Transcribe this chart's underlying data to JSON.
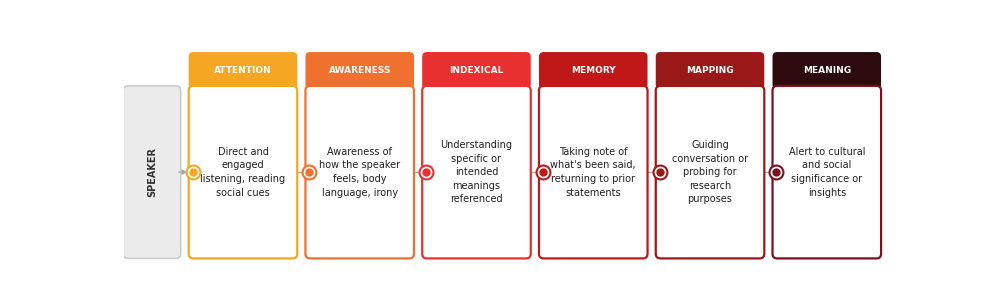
{
  "categories": [
    "ATTENTION",
    "AWARENESS",
    "INDEXICAL",
    "MEMORY",
    "MAPPING",
    "MEANING"
  ],
  "header_colors": [
    "#F5A623",
    "#F07030",
    "#E83030",
    "#C01818",
    "#9B1818",
    "#2C0A0E"
  ],
  "border_colors": [
    "#F5A623",
    "#F07030",
    "#E83030",
    "#C01818",
    "#9B1818",
    "#7A1020"
  ],
  "dot_fill_colors": [
    "#F5A623",
    "#F07030",
    "#E83030",
    "#C01818",
    "#9B1818",
    "#7A1020"
  ],
  "descriptions": [
    "Direct and\nengaged\nlistening, reading\nsocial cues",
    "Awareness of\nhow the speaker\nfeels, body\nlanguage, irony",
    "Understanding\nspecific or\nintended\nmeanings\nreferenced",
    "Taking note of\nwhat's been said,\nreturning to prior\nstatements",
    "Guiding\nconversation or\nprobing for\nresearch\npurposes",
    "Alert to cultural\nand social\nsignificance or\ninsights"
  ],
  "speaker_label": "SPEAKER",
  "bg_color": "#FFFFFF",
  "header_text_color": "#FFFFFF",
  "desc_text_color": "#222222",
  "speaker_bg": "#EBEBEB",
  "speaker_border": "#CCCCCC",
  "speaker_text_color": "#333333",
  "line_color": "#AAAAAA",
  "n_cols": 6,
  "fig_w": 9.93,
  "fig_h": 2.99,
  "dpi": 100
}
